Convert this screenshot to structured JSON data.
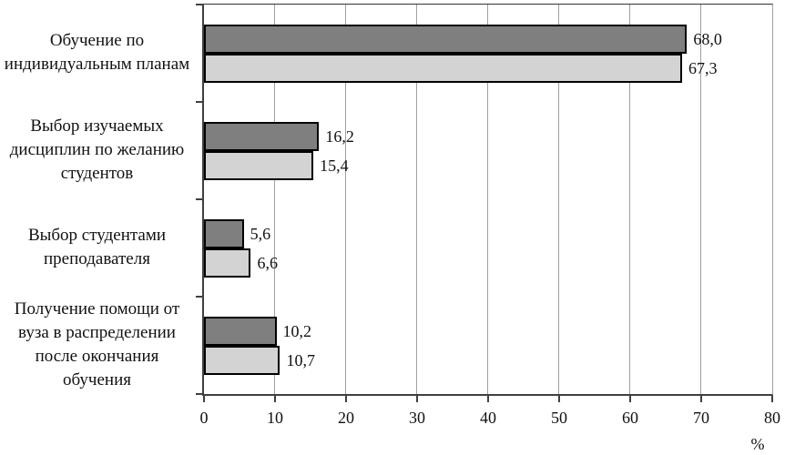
{
  "chart_data": {
    "type": "bar",
    "orientation": "horizontal",
    "title": "",
    "xlabel": "%",
    "ylabel": "",
    "xlim": [
      0,
      80
    ],
    "x_ticks": [
      0,
      10,
      20,
      30,
      40,
      50,
      60,
      70,
      80
    ],
    "grid": true,
    "legend": false,
    "categories": [
      {
        "label": "Обучение по индивидуальным планам",
        "lines": [
          "Обучение по",
          "индивидуальным планам"
        ]
      },
      {
        "label": "Выбор изучаемых дисциплин по желанию студентов",
        "lines": [
          "Выбор изучаемых",
          "дисциплин по желанию",
          "студентов"
        ]
      },
      {
        "label": "Выбор студентами преподавателя",
        "lines": [
          "Выбор студентами",
          "преподавателя"
        ]
      },
      {
        "label": "Получение помощи от вуза в распределении после окончания обучения",
        "lines": [
          "Получение помощи от",
          "вуза в распределении",
          "после окончания",
          "обучения"
        ]
      }
    ],
    "series": [
      {
        "name": "dark-gray-series",
        "color": "#7f7f7f",
        "values": [
          68.0,
          16.2,
          5.6,
          10.2
        ],
        "value_labels": [
          "68,0",
          "16,2",
          "5,6",
          "10,2"
        ]
      },
      {
        "name": "light-gray-series",
        "color": "#d3d3d3",
        "values": [
          67.3,
          15.4,
          6.6,
          10.7
        ],
        "value_labels": [
          "67,3",
          "15,4",
          "6,6",
          "10,7"
        ]
      }
    ],
    "colors": {
      "grid": "#a0a0a0",
      "axis": "#404040",
      "bar_border": "#000000",
      "text": "#111111",
      "background": "#ffffff"
    }
  }
}
